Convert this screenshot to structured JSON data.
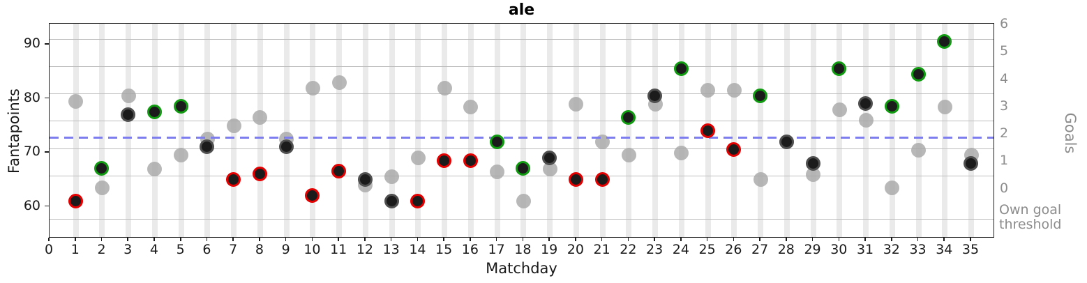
{
  "title": "ale",
  "axes": {
    "x": {
      "label": "Matchday",
      "ticks": [
        0,
        1,
        2,
        3,
        4,
        5,
        6,
        7,
        8,
        9,
        10,
        11,
        12,
        13,
        14,
        15,
        16,
        17,
        18,
        19,
        20,
        21,
        22,
        23,
        24,
        25,
        26,
        27,
        28,
        29,
        30,
        31,
        32,
        33,
        34,
        35
      ]
    },
    "y_left": {
      "label": "Fantapoints",
      "ticks": [
        60,
        70,
        80,
        90
      ]
    },
    "y_right": {
      "label": "Goals",
      "ticks": [
        0,
        1,
        2,
        3,
        4,
        5,
        6
      ],
      "extra_label": "Own goal threshold"
    }
  },
  "colors": {
    "red_edge": "#e40000",
    "green_edge": "#109b10",
    "gray_edge": "#4f4f4f",
    "dot_fill": "#1b1b1b",
    "gray_dot": "#a4a4a4",
    "dashed_line": "#7d7def",
    "grid": "#bdbdbd",
    "band": "#eaeaea",
    "right_axis_text": "#8c8c8c"
  },
  "chart_data": {
    "type": "scatter",
    "title": "ale",
    "xlabel": "Matchday",
    "ylabel": "Fantapoints",
    "ylabel_right": "Goals",
    "x_range": [
      0,
      35.9
    ],
    "y_left_range": [
      54,
      94
    ],
    "y_right_range": [
      -1.8,
      6.05
    ],
    "x_ticks": [
      0,
      1,
      2,
      3,
      4,
      5,
      6,
      7,
      8,
      9,
      10,
      11,
      12,
      13,
      14,
      15,
      16,
      17,
      18,
      19,
      20,
      21,
      22,
      23,
      24,
      25,
      26,
      27,
      28,
      29,
      30,
      31,
      32,
      33,
      34,
      35
    ],
    "y_left_ticks": [
      60,
      70,
      80,
      90
    ],
    "y_right_ticks": [
      0,
      1,
      2,
      3,
      4,
      5,
      6
    ],
    "grid": "vertical band per matchday; horizontal lines at half-goal steps",
    "h_gridlines_goals": [
      5.5,
      4.5,
      3.5,
      2.5,
      1.5,
      0.5
    ],
    "own_goal_line_goals": -1.08,
    "own_goal_label": "Own goal threshold",
    "threshold_line": {
      "fantapoints": 72.8,
      "equivalent_goals": 2,
      "style": "dashed"
    },
    "legend": "none",
    "series": [
      {
        "name": "fantapoints-black-dots",
        "note": "black dots, edge color red/green/gray",
        "points": [
          {
            "matchday": 1,
            "fantapoints": 61,
            "edge": "red"
          },
          {
            "matchday": 2,
            "fantapoints": 67,
            "edge": "green"
          },
          {
            "matchday": 3,
            "fantapoints": 77,
            "edge": "gray"
          },
          {
            "matchday": 4,
            "fantapoints": 77.5,
            "edge": "green"
          },
          {
            "matchday": 5,
            "fantapoints": 78.5,
            "edge": "green"
          },
          {
            "matchday": 6,
            "fantapoints": 71,
            "edge": "gray"
          },
          {
            "matchday": 7,
            "fantapoints": 65,
            "edge": "red"
          },
          {
            "matchday": 8,
            "fantapoints": 66,
            "edge": "red"
          },
          {
            "matchday": 9,
            "fantapoints": 71,
            "edge": "gray"
          },
          {
            "matchday": 10,
            "fantapoints": 62,
            "edge": "red"
          },
          {
            "matchday": 11,
            "fantapoints": 66.5,
            "edge": "red"
          },
          {
            "matchday": 12,
            "fantapoints": 65,
            "edge": "gray"
          },
          {
            "matchday": 13,
            "fantapoints": 61,
            "edge": "gray"
          },
          {
            "matchday": 14,
            "fantapoints": 61,
            "edge": "red"
          },
          {
            "matchday": 15,
            "fantapoints": 68.5,
            "edge": "red"
          },
          {
            "matchday": 16,
            "fantapoints": 68.5,
            "edge": "red"
          },
          {
            "matchday": 17,
            "fantapoints": 72,
            "edge": "green"
          },
          {
            "matchday": 18,
            "fantapoints": 67,
            "edge": "green"
          },
          {
            "matchday": 19,
            "fantapoints": 69,
            "edge": "gray"
          },
          {
            "matchday": 20,
            "fantapoints": 65,
            "edge": "red"
          },
          {
            "matchday": 21,
            "fantapoints": 65,
            "edge": "red"
          },
          {
            "matchday": 22,
            "fantapoints": 76.5,
            "edge": "green"
          },
          {
            "matchday": 23,
            "fantapoints": 80.5,
            "edge": "gray"
          },
          {
            "matchday": 24,
            "fantapoints": 85.5,
            "edge": "green"
          },
          {
            "matchday": 25,
            "fantapoints": 74,
            "edge": "red"
          },
          {
            "matchday": 26,
            "fantapoints": 70.5,
            "edge": "red"
          },
          {
            "matchday": 27,
            "fantapoints": 80.5,
            "edge": "green"
          },
          {
            "matchday": 28,
            "fantapoints": 72,
            "edge": "gray"
          },
          {
            "matchday": 29,
            "fantapoints": 68,
            "edge": "gray"
          },
          {
            "matchday": 30,
            "fantapoints": 85.5,
            "edge": "green"
          },
          {
            "matchday": 31,
            "fantapoints": 79,
            "edge": "gray"
          },
          {
            "matchday": 32,
            "fantapoints": 78.5,
            "edge": "green"
          },
          {
            "matchday": 33,
            "fantapoints": 84.5,
            "edge": "green"
          },
          {
            "matchday": 34,
            "fantapoints": 90.5,
            "edge": "green"
          },
          {
            "matchday": 35,
            "fantapoints": 68,
            "edge": "gray"
          }
        ]
      },
      {
        "name": "gray-dots",
        "note": "light gray unedged dots",
        "points": [
          {
            "matchday": 1,
            "fantapoints": 79.5
          },
          {
            "matchday": 2,
            "fantapoints": 63.5
          },
          {
            "matchday": 3,
            "fantapoints": 80.5
          },
          {
            "matchday": 4,
            "fantapoints": 67
          },
          {
            "matchday": 5,
            "fantapoints": 69.5
          },
          {
            "matchday": 6,
            "fantapoints": 72.5
          },
          {
            "matchday": 7,
            "fantapoints": 75
          },
          {
            "matchday": 8,
            "fantapoints": 76.5
          },
          {
            "matchday": 9,
            "fantapoints": 72.5
          },
          {
            "matchday": 10,
            "fantapoints": 82
          },
          {
            "matchday": 11,
            "fantapoints": 83
          },
          {
            "matchday": 12,
            "fantapoints": 64
          },
          {
            "matchday": 13,
            "fantapoints": 65.5
          },
          {
            "matchday": 14,
            "fantapoints": 69
          },
          {
            "matchday": 15,
            "fantapoints": 82
          },
          {
            "matchday": 16,
            "fantapoints": 78.5
          },
          {
            "matchday": 17,
            "fantapoints": 66.5
          },
          {
            "matchday": 18,
            "fantapoints": 61
          },
          {
            "matchday": 19,
            "fantapoints": 67
          },
          {
            "matchday": 20,
            "fantapoints": 79
          },
          {
            "matchday": 21,
            "fantapoints": 72
          },
          {
            "matchday": 22,
            "fantapoints": 69.5
          },
          {
            "matchday": 23,
            "fantapoints": 79
          },
          {
            "matchday": 24,
            "fantapoints": 70
          },
          {
            "matchday": 25,
            "fantapoints": 81.5
          },
          {
            "matchday": 26,
            "fantapoints": 81.5
          },
          {
            "matchday": 27,
            "fantapoints": 65
          },
          {
            "matchday": 28,
            "fantapoints": 72
          },
          {
            "matchday": 29,
            "fantapoints": 66
          },
          {
            "matchday": 30,
            "fantapoints": 78
          },
          {
            "matchday": 31,
            "fantapoints": 76
          },
          {
            "matchday": 32,
            "fantapoints": 63.5
          },
          {
            "matchday": 33,
            "fantapoints": 70.5
          },
          {
            "matchday": 34,
            "fantapoints": 78.5
          },
          {
            "matchday": 35,
            "fantapoints": 69.5
          }
        ]
      }
    ]
  }
}
